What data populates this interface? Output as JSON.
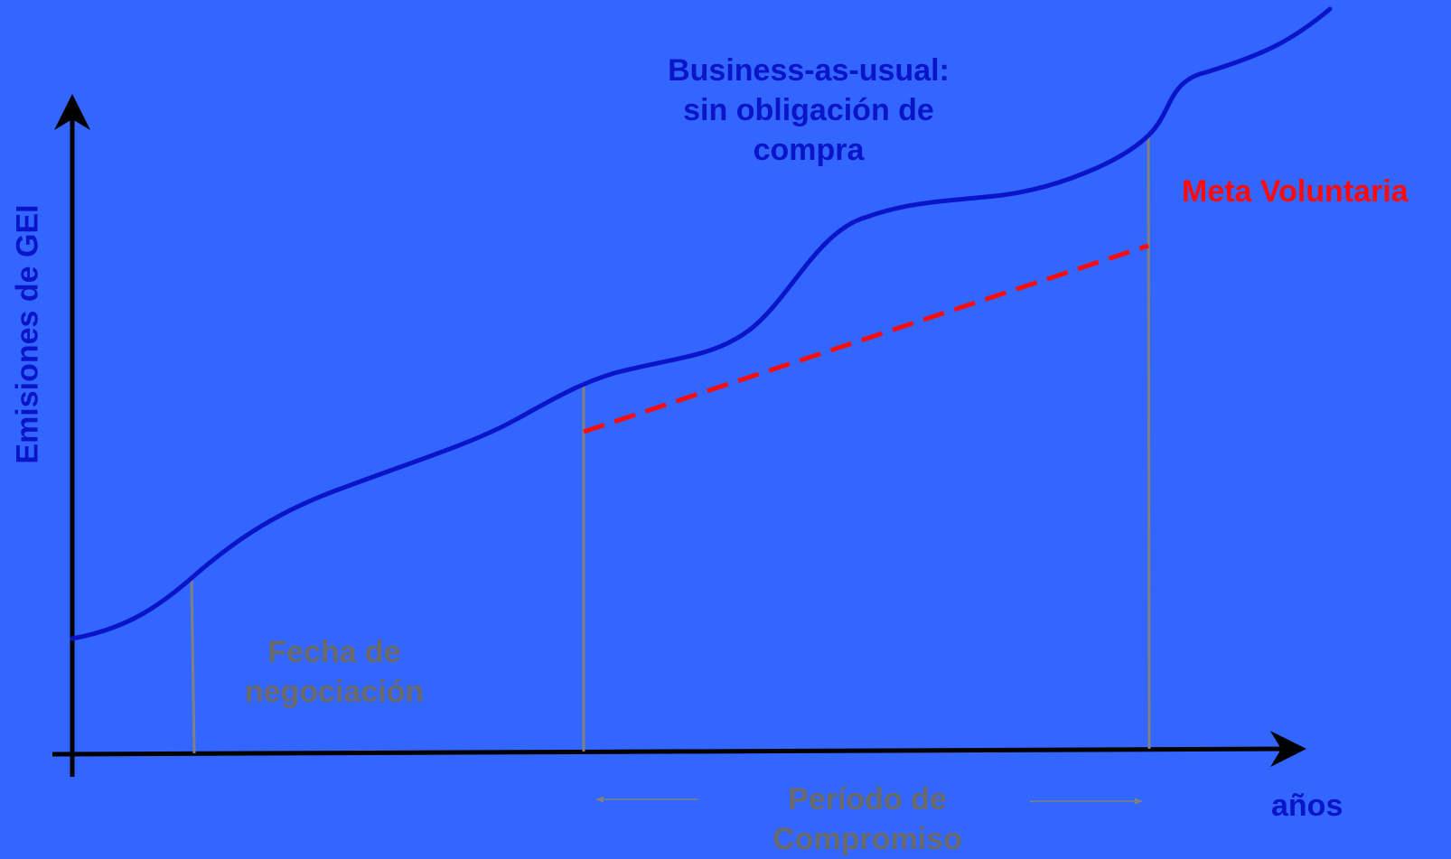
{
  "labels": {
    "business_as_usual": [
      "Business-as-usual:",
      "sin obligación de",
      "compra"
    ],
    "meta_voluntaria": "Meta Voluntaria",
    "fecha_negociacion": [
      "Fecha de",
      "negociación"
    ],
    "periodo_compromiso": [
      "Período de",
      "Compromiso"
    ],
    "y_axis": "Emisiones de GEI",
    "x_axis": "años"
  },
  "colors": {
    "background": "#3366ff",
    "bau_curve": "#0a14c8",
    "meta_line": "#ff0a0a",
    "markers": "#808080",
    "grey_text": "#6a6a6a",
    "axes": "#000000"
  }
}
